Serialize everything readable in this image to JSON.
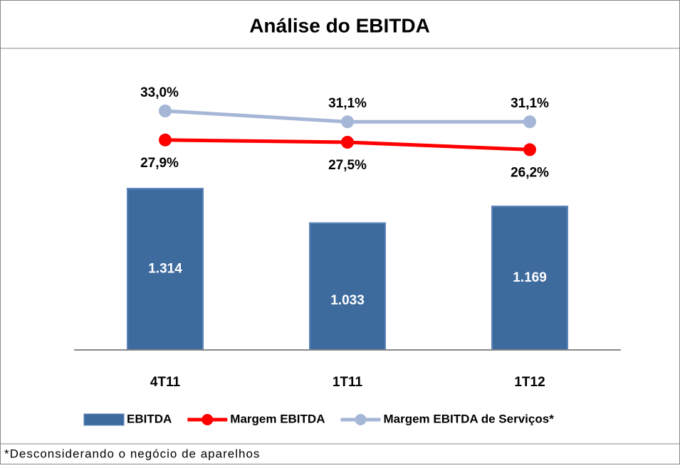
{
  "chart_data": {
    "type": "bar_line",
    "title": "Análise do EBITDA",
    "categories": [
      "4T11",
      "1T11",
      "1T12"
    ],
    "series": [
      {
        "name": "EBITDA",
        "type": "bar",
        "color": "#3e6b9e",
        "values": [
          1314,
          1033,
          1169
        ],
        "value_labels": [
          "1.314",
          "1.033",
          "1.169"
        ]
      },
      {
        "name": "Margem EBITDA",
        "type": "line",
        "axis": "y2",
        "color": "#ff0000",
        "values": [
          27.9,
          27.5,
          26.2
        ],
        "value_labels": [
          "27,9%",
          "27,5%",
          "26,2%"
        ]
      },
      {
        "name": "Margem EBITDA de Serviços*",
        "type": "line",
        "axis": "y2",
        "color": "#a6b6d6",
        "values": [
          33.0,
          31.1,
          31.1
        ],
        "value_labels": [
          "33,0%",
          "31,1%",
          "31,1%"
        ]
      }
    ],
    "ylim": [
      0,
      2270
    ],
    "y2lim": [
      -9,
      40
    ],
    "legend": "bottom",
    "footnote": "*Desconsiderando o negócio de aparelhos"
  }
}
